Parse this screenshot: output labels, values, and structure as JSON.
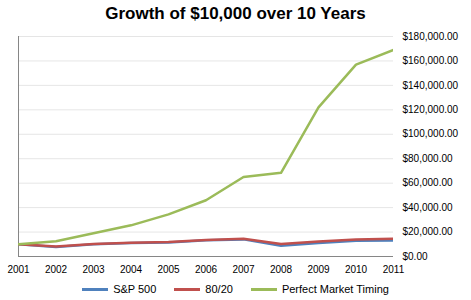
{
  "chart_data": {
    "type": "line",
    "title": "Growth of $10,000 over 10 Years",
    "x": [
      2001,
      2002,
      2003,
      2004,
      2005,
      2006,
      2007,
      2008,
      2009,
      2010,
      2011
    ],
    "series": [
      {
        "name": "S&P 500",
        "color": "#4f81bd",
        "values": [
          10000,
          7800,
          10000,
          11000,
          11500,
          13300,
          14000,
          8800,
          11100,
          12800,
          13000
        ]
      },
      {
        "name": "80/20",
        "color": "#c0504d",
        "values": [
          10000,
          8200,
          10300,
          11300,
          11800,
          13600,
          14500,
          10200,
          12200,
          14000,
          14500
        ]
      },
      {
        "name": "Perfect Market Timing",
        "color": "#9bbb59",
        "values": [
          10000,
          12500,
          19000,
          25500,
          34500,
          46000,
          65000,
          68500,
          122000,
          157000,
          169000
        ]
      }
    ],
    "xlim": [
      2001,
      2011
    ],
    "xticks": [
      2001,
      2002,
      2003,
      2004,
      2005,
      2006,
      2007,
      2008,
      2009,
      2010,
      2011
    ],
    "ylim": [
      0,
      180000
    ],
    "yticks": [
      {
        "value": 0,
        "label": "$0.00"
      },
      {
        "value": 20000,
        "label": "$20,000.00"
      },
      {
        "value": 40000,
        "label": "$40,000.00"
      },
      {
        "value": 60000,
        "label": "$60,000.00"
      },
      {
        "value": 80000,
        "label": "$80,000.00"
      },
      {
        "value": 100000,
        "label": "$100,000.00"
      },
      {
        "value": 120000,
        "label": "$120,000.00"
      },
      {
        "value": 140000,
        "label": "$140,000.00"
      },
      {
        "value": 160000,
        "label": "$160,000.00"
      },
      {
        "value": 180000,
        "label": "$180,000.00"
      }
    ],
    "grid": true,
    "legend": "bottom",
    "line_style": "solid",
    "marker": "none"
  }
}
